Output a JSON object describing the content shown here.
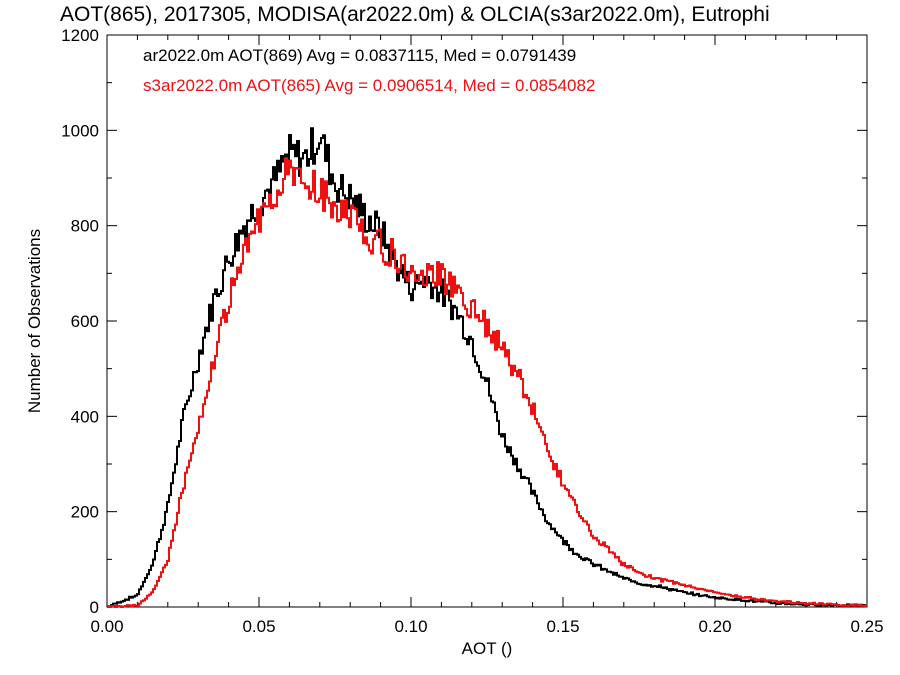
{
  "chart_data": {
    "type": "line",
    "title": "AOT(865), 2017305, MODISA(ar2022.0m) & OLCIA(s3ar2022.0m), Eutrophi",
    "xlabel": "AOT ()",
    "ylabel": "Number of Observations",
    "xlim": [
      0.0,
      0.25
    ],
    "ylim": [
      0,
      1200
    ],
    "xticks": [
      "0.00",
      "0.05",
      "0.10",
      "0.15",
      "0.20",
      "0.25"
    ],
    "yticks": [
      "0",
      "200",
      "400",
      "600",
      "800",
      "1000",
      "1200"
    ],
    "legend_placement": "top-left",
    "x": [
      0.0,
      0.01,
      0.015,
      0.02,
      0.025,
      0.03,
      0.035,
      0.04,
      0.045,
      0.05,
      0.055,
      0.06,
      0.065,
      0.07,
      0.075,
      0.08,
      0.085,
      0.09,
      0.095,
      0.1,
      0.105,
      0.11,
      0.115,
      0.12,
      0.125,
      0.13,
      0.135,
      0.14,
      0.145,
      0.15,
      0.155,
      0.16,
      0.165,
      0.17,
      0.175,
      0.18,
      0.185,
      0.19,
      0.2,
      0.21,
      0.22,
      0.23,
      0.24,
      0.25
    ],
    "series": [
      {
        "name": "ar2022.0m AOT(869) Avg = 0.0837115, Med = 0.0791439",
        "color": "#000000",
        "values": [
          0,
          25,
          90,
          210,
          390,
          520,
          640,
          730,
          800,
          850,
          890,
          950,
          940,
          990,
          890,
          860,
          820,
          790,
          720,
          670,
          690,
          660,
          620,
          560,
          470,
          360,
          300,
          240,
          180,
          140,
          110,
          90,
          75,
          60,
          50,
          45,
          38,
          30,
          20,
          14,
          8,
          5,
          4,
          3
        ]
      },
      {
        "name": "s3ar2022.0m AOT(865) Avg = 0.0906514, Med = 0.0854082",
        "color": "#ee1111",
        "values": [
          0,
          3,
          30,
          100,
          250,
          380,
          510,
          640,
          730,
          820,
          870,
          910,
          890,
          870,
          840,
          820,
          790,
          760,
          730,
          700,
          700,
          690,
          660,
          630,
          590,
          540,
          490,
          420,
          330,
          260,
          200,
          150,
          120,
          90,
          70,
          60,
          55,
          45,
          30,
          20,
          12,
          8,
          5,
          3
        ]
      }
    ]
  }
}
